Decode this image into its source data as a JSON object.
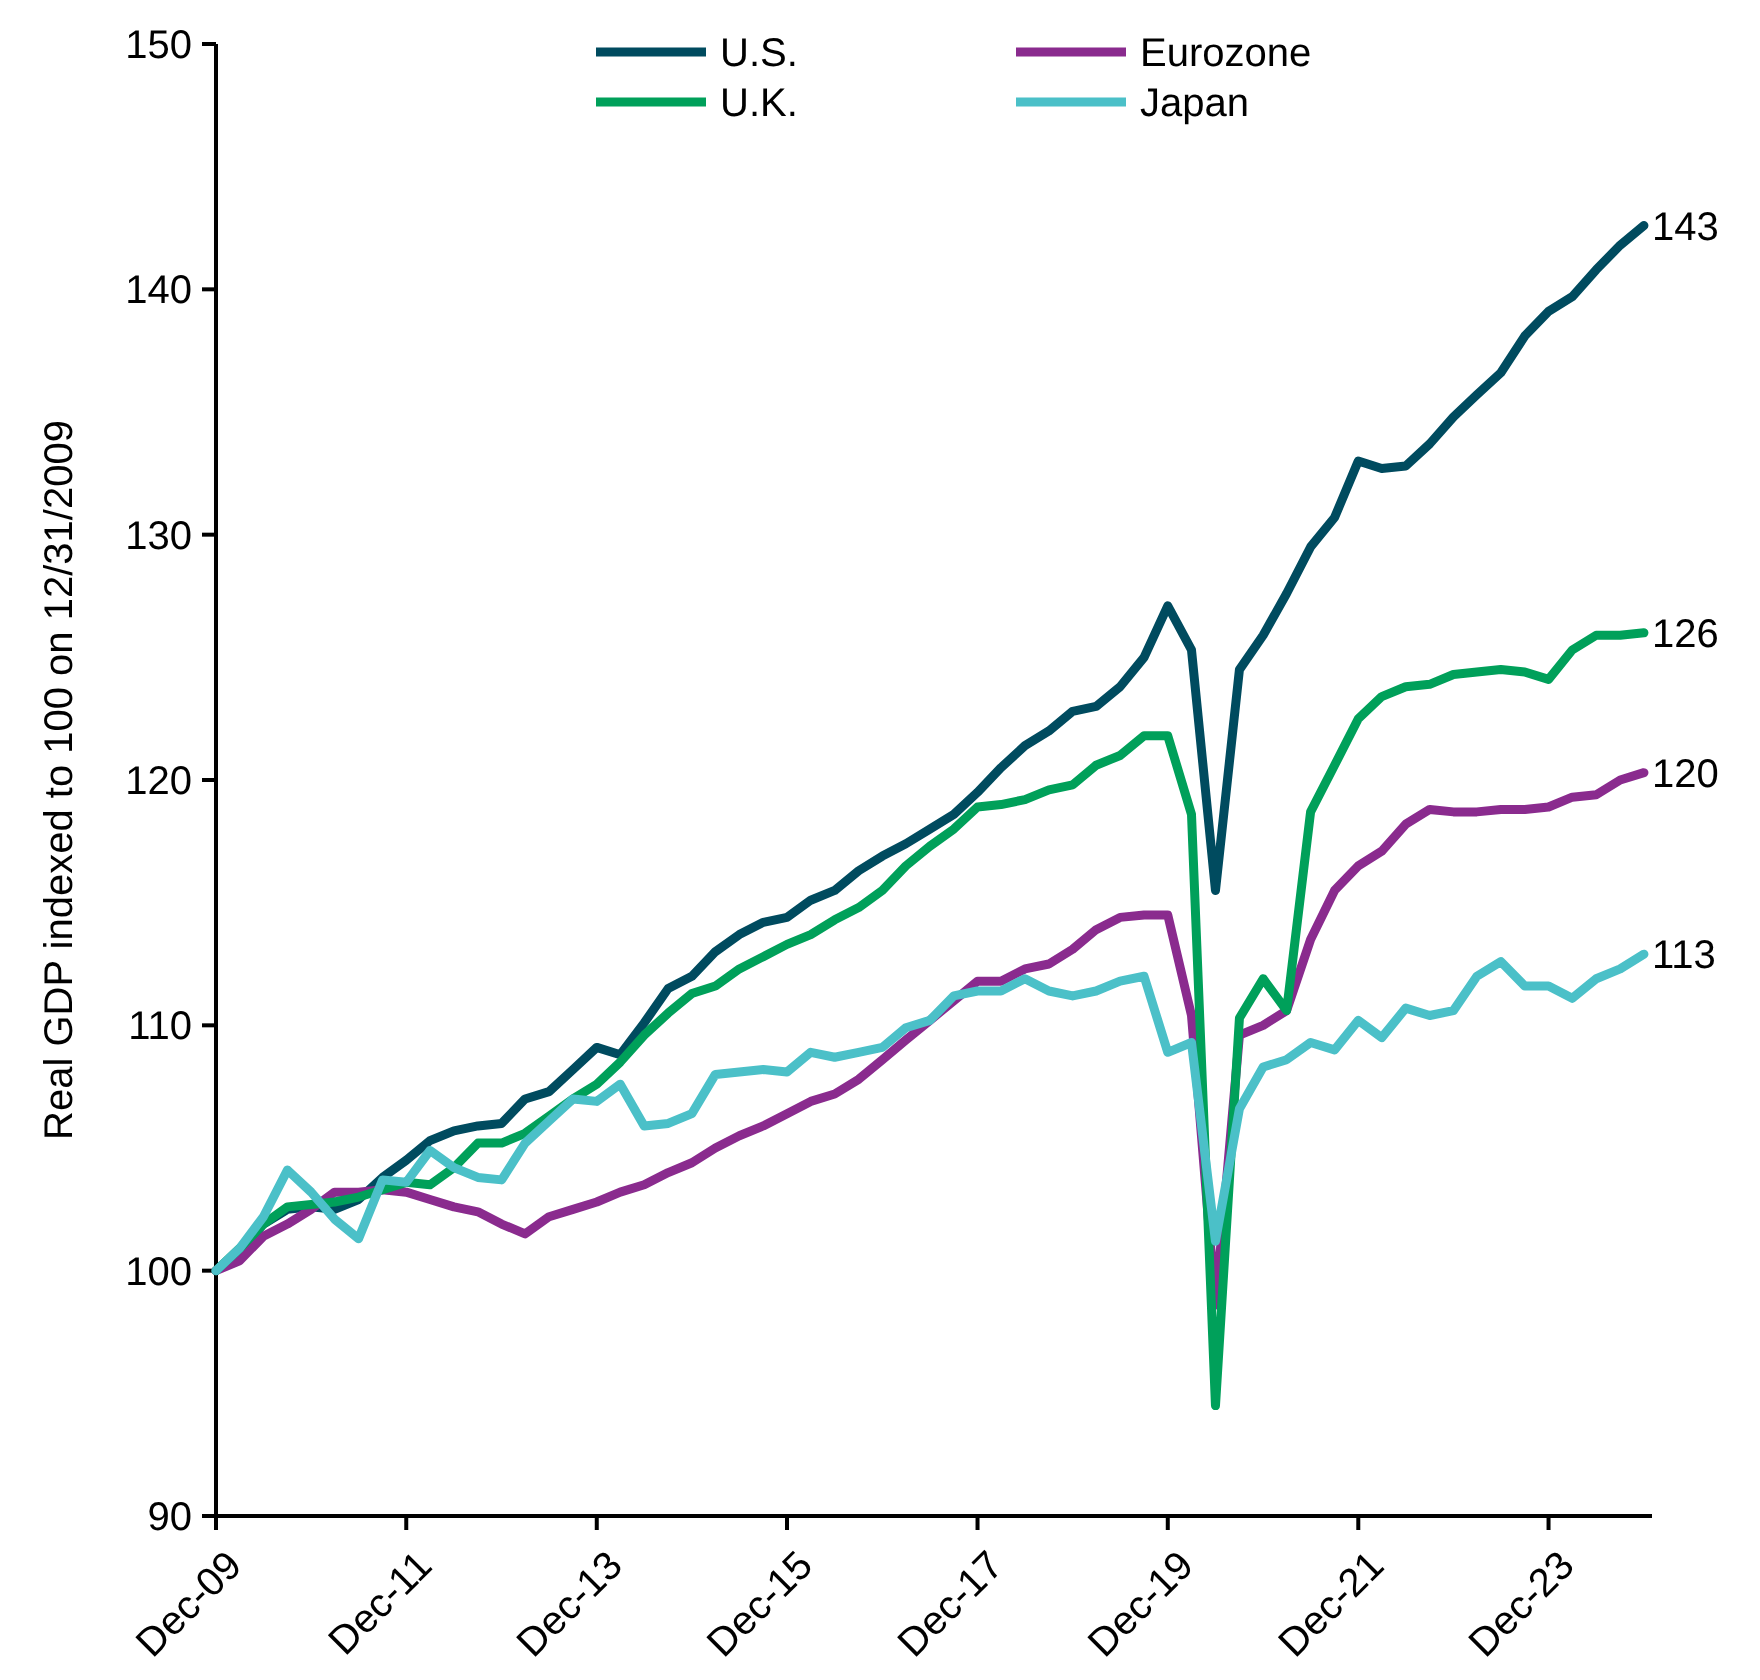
{
  "chart_data": {
    "type": "line",
    "ylabel": "Real GDP indexed to 100 on 12/31/2009",
    "x": [
      "2009-12",
      "2010-03",
      "2010-06",
      "2010-09",
      "2010-12",
      "2011-03",
      "2011-06",
      "2011-09",
      "2011-12",
      "2012-03",
      "2012-06",
      "2012-09",
      "2012-12",
      "2013-03",
      "2013-06",
      "2013-09",
      "2013-12",
      "2014-03",
      "2014-06",
      "2014-09",
      "2014-12",
      "2015-03",
      "2015-06",
      "2015-09",
      "2015-12",
      "2016-03",
      "2016-06",
      "2016-09",
      "2016-12",
      "2017-03",
      "2017-06",
      "2017-09",
      "2017-12",
      "2018-03",
      "2018-06",
      "2018-09",
      "2018-12",
      "2019-03",
      "2019-06",
      "2019-09",
      "2019-12",
      "2020-03",
      "2020-06",
      "2020-09",
      "2020-12",
      "2021-03",
      "2021-06",
      "2021-09",
      "2021-12",
      "2022-03",
      "2022-06",
      "2022-09",
      "2022-12",
      "2023-03",
      "2023-06",
      "2023-09",
      "2023-12",
      "2024-03",
      "2024-06",
      "2024-09",
      "2024-12"
    ],
    "series": [
      {
        "name": "U.S.",
        "color": "#004b5f",
        "values": [
          100,
          100.8,
          101.9,
          102.5,
          102.6,
          102.5,
          102.9,
          103.8,
          104.5,
          105.3,
          105.7,
          105.9,
          106.0,
          107.0,
          107.3,
          108.2,
          109.1,
          108.8,
          110.1,
          111.5,
          112.0,
          113.0,
          113.7,
          114.2,
          114.4,
          115.1,
          115.5,
          116.3,
          116.9,
          117.4,
          118.0,
          118.6,
          119.5,
          120.5,
          121.4,
          122.0,
          122.8,
          123.0,
          123.8,
          125.0,
          127.1,
          125.3,
          115.5,
          124.5,
          125.9,
          127.6,
          129.5,
          130.7,
          133.0,
          132.7,
          132.8,
          133.7,
          134.8,
          135.7,
          136.6,
          138.1,
          139.1,
          139.7,
          140.8,
          141.8,
          142.6
        ]
      },
      {
        "name": "Eurozone",
        "color": "#8a2b8e",
        "values": [
          100,
          100.4,
          101.4,
          101.9,
          102.5,
          103.2,
          103.2,
          103.3,
          103.2,
          102.9,
          102.6,
          102.4,
          101.9,
          101.5,
          102.2,
          102.5,
          102.8,
          103.2,
          103.5,
          104.0,
          104.4,
          105.0,
          105.5,
          105.9,
          106.4,
          106.9,
          107.2,
          107.8,
          108.6,
          109.4,
          110.2,
          111.0,
          111.8,
          111.8,
          112.3,
          112.5,
          113.1,
          113.9,
          114.4,
          114.5,
          114.5,
          110.4,
          98.6,
          109.6,
          110.0,
          110.6,
          113.5,
          115.5,
          116.5,
          117.1,
          118.2,
          118.8,
          118.7,
          118.7,
          118.8,
          118.8,
          118.9,
          119.3,
          119.4,
          120.0,
          120.3
        ]
      },
      {
        "name": "U.K.",
        "color": "#00a05a",
        "values": [
          100,
          100.9,
          101.9,
          102.6,
          102.7,
          102.8,
          103.0,
          103.3,
          103.6,
          103.5,
          104.2,
          105.2,
          105.2,
          105.6,
          106.3,
          107.0,
          107.6,
          108.5,
          109.6,
          110.5,
          111.3,
          111.6,
          112.3,
          112.8,
          113.3,
          113.7,
          114.3,
          114.8,
          115.5,
          116.5,
          117.3,
          118.0,
          118.9,
          119.0,
          119.2,
          119.6,
          119.8,
          120.6,
          121.0,
          121.8,
          121.8,
          118.6,
          94.5,
          110.3,
          111.9,
          110.6,
          118.7,
          120.6,
          122.5,
          123.4,
          123.8,
          123.9,
          124.3,
          124.4,
          124.5,
          124.4,
          124.1,
          125.3,
          125.9,
          125.9,
          126.0
        ]
      },
      {
        "name": "Japan",
        "color": "#4bc0c8",
        "values": [
          100,
          100.9,
          102.2,
          104.1,
          103.2,
          102.1,
          101.3,
          103.7,
          103.6,
          104.9,
          104.2,
          103.8,
          103.7,
          105.2,
          106.1,
          107.0,
          106.9,
          107.6,
          105.9,
          106.0,
          106.4,
          108.0,
          108.1,
          108.2,
          108.1,
          108.9,
          108.7,
          108.9,
          109.1,
          109.9,
          110.2,
          111.2,
          111.4,
          111.4,
          111.9,
          111.4,
          111.2,
          111.4,
          111.8,
          112.0,
          108.9,
          109.3,
          101.2,
          106.6,
          108.3,
          108.6,
          109.3,
          109.0,
          110.2,
          109.5,
          110.7,
          110.4,
          110.6,
          112.0,
          112.6,
          111.6,
          111.6,
          111.1,
          111.9,
          112.3,
          112.9
        ]
      }
    ],
    "annotations": [
      {
        "text": "143",
        "x": "2024-12",
        "y": 142.6
      },
      {
        "text": "126",
        "x": "2024-12",
        "y": 126.0
      },
      {
        "text": "120",
        "x": "2024-12",
        "y": 120.3
      },
      {
        "text": "113",
        "x": "2024-12",
        "y": 112.9
      }
    ],
    "xlim": [
      "2009-12",
      "2025-01"
    ],
    "xticks": [
      {
        "value": "2009-12",
        "label": "Dec-09"
      },
      {
        "value": "2011-12",
        "label": "Dec-11"
      },
      {
        "value": "2013-12",
        "label": "Dec-13"
      },
      {
        "value": "2015-12",
        "label": "Dec-15"
      },
      {
        "value": "2017-12",
        "label": "Dec-17"
      },
      {
        "value": "2019-12",
        "label": "Dec-19"
      },
      {
        "value": "2021-12",
        "label": "Dec-21"
      },
      {
        "value": "2023-12",
        "label": "Dec-23"
      }
    ],
    "ylim": [
      90,
      150
    ],
    "yticks": [
      90,
      100,
      110,
      120,
      130,
      140,
      150
    ],
    "grid": false,
    "legend": "top",
    "marker": "none",
    "line_style": "solid"
  }
}
